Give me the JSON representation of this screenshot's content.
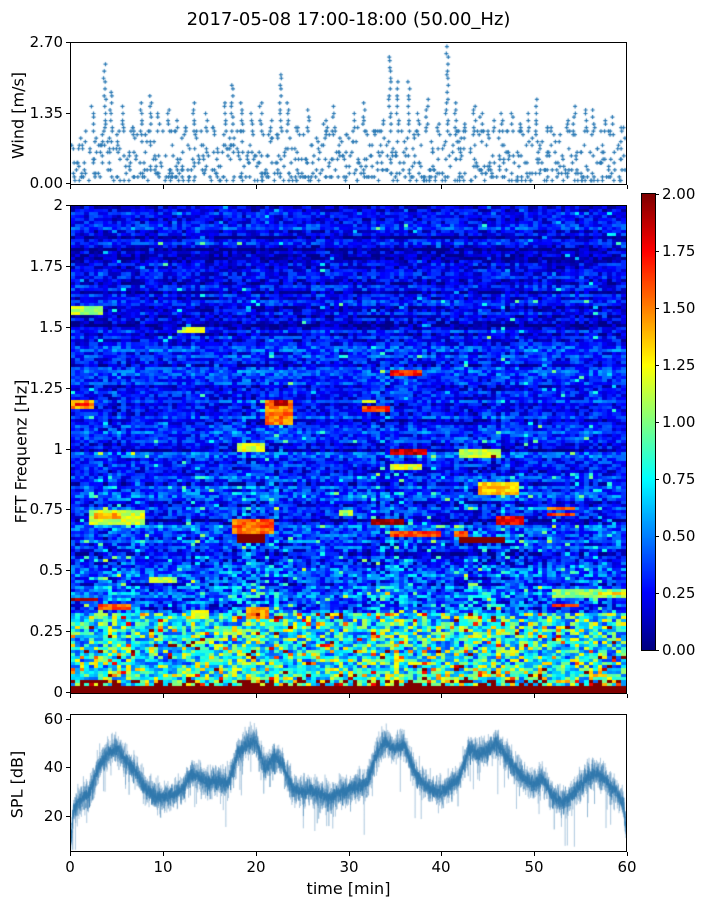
{
  "title": "2017-05-08 17:00-18:00 (50.00_Hz)",
  "colors": {
    "marker_blue": "#2878b4",
    "spl_blue": "#3078ad",
    "axis": "#000000",
    "background": "#ffffff"
  },
  "chart_data": [
    {
      "type": "scatter",
      "name": "wind-speed",
      "ylabel": "Wind [m/s]",
      "yticks": [
        "0.00",
        "1.35",
        "2.70"
      ],
      "ytick_values": [
        0,
        1.35,
        2.7
      ],
      "ylim": [
        0,
        2.7
      ],
      "xlim": [
        0,
        60
      ],
      "marker": "plus",
      "quantization_ms": 0.0675,
      "points_per_minute": 13,
      "minute_max_envelope": [
        0.95,
        1.0,
        1.45,
        2.25,
        1.75,
        1.45,
        1.1,
        1.5,
        1.65,
        1.35,
        1.4,
        1.2,
        1.1,
        1.5,
        1.3,
        1.1,
        1.55,
        1.9,
        1.5,
        1.3,
        1.55,
        1.2,
        2.1,
        1.5,
        1.1,
        1.4,
        1.0,
        1.2,
        1.45,
        1.0,
        1.3,
        1.5,
        1.0,
        1.2,
        2.45,
        1.9,
        1.9,
        1.3,
        1.6,
        1.1,
        2.6,
        1.5,
        1.1,
        1.5,
        1.35,
        1.2,
        1.3,
        1.35,
        1.1,
        1.3,
        1.55,
        1.1,
        1.0,
        1.2,
        1.45,
        1.4,
        1.35,
        1.2,
        1.25,
        1.1
      ]
    },
    {
      "type": "heatmap",
      "name": "fft-spectrogram",
      "ylabel": "FFT Frequenz [Hz]",
      "yticks": [
        "0",
        "0.25",
        "0.5",
        "0.75",
        "1",
        "1.25",
        "1.5",
        "1.75",
        "2"
      ],
      "ytick_values": [
        0,
        0.25,
        0.5,
        0.75,
        1,
        1.25,
        1.5,
        1.75,
        2
      ],
      "ylim": [
        0,
        2
      ],
      "xlim": [
        0,
        60
      ],
      "colormap": "jet",
      "clim": [
        0,
        2
      ],
      "colorbar_ticks": [
        "0.00",
        "0.25",
        "0.50",
        "0.75",
        "1.00",
        "1.25",
        "1.50",
        "1.75",
        "2.00"
      ],
      "colorbar_tick_values": [
        0,
        0.25,
        0.5,
        0.75,
        1,
        1.25,
        1.5,
        1.75,
        2
      ],
      "bottom_band_hz": 0.03,
      "low_band_hz": 0.33,
      "base_profile": [
        [
          0,
          2.5
        ],
        [
          0.025,
          2.5
        ],
        [
          0.04,
          1.15
        ],
        [
          0.07,
          0.95
        ],
        [
          0.12,
          0.8
        ],
        [
          0.2,
          0.68
        ],
        [
          0.3,
          0.52
        ],
        [
          0.4,
          0.42
        ],
        [
          0.55,
          0.37
        ],
        [
          0.8,
          0.33
        ],
        [
          1.1,
          0.31
        ],
        [
          1.5,
          0.29
        ],
        [
          2,
          0.27
        ]
      ],
      "noise_profile": [
        [
          0.03,
          0.55
        ],
        [
          0.1,
          0.5
        ],
        [
          0.25,
          0.45
        ],
        [
          0.4,
          0.3
        ],
        [
          0.7,
          0.24
        ],
        [
          1.2,
          0.2
        ],
        [
          2,
          0.18
        ]
      ],
      "hotspots": [
        [
          0,
          3.5,
          1.552,
          1.585,
          1.1
        ],
        [
          0,
          2.7,
          1.163,
          1.2,
          1.45
        ],
        [
          0.3,
          2.2,
          1.175,
          1.19,
          1.75
        ],
        [
          2,
          8,
          0.69,
          0.755,
          1.15
        ],
        [
          2.5,
          5.5,
          0.715,
          0.732,
          1.4
        ],
        [
          0,
          3.2,
          0.372,
          0.39,
          1.9
        ],
        [
          3.2,
          6.5,
          0.34,
          0.357,
          1.55
        ],
        [
          8.5,
          11.5,
          0.455,
          0.478,
          1.1
        ],
        [
          12.2,
          14.5,
          1.48,
          1.5,
          1.15
        ],
        [
          13,
          15,
          0.3,
          0.335,
          1.25
        ],
        [
          17.6,
          22,
          0.655,
          0.712,
          1.55
        ],
        [
          18,
          21.2,
          0.618,
          0.648,
          2.2
        ],
        [
          18,
          21,
          0.985,
          1.03,
          1.2
        ],
        [
          21,
          24,
          1.105,
          1.2,
          1.5
        ],
        [
          22,
          23.7,
          1.178,
          1.198,
          1.95
        ],
        [
          19,
          21.5,
          0.3,
          0.345,
          1.5
        ],
        [
          28.8,
          30.3,
          0.72,
          0.745,
          1.05
        ],
        [
          31.3,
          34.5,
          1.148,
          1.172,
          1.65
        ],
        [
          31.6,
          33.2,
          1.188,
          1.205,
          1.3
        ],
        [
          34.5,
          38,
          1.298,
          1.328,
          1.7
        ],
        [
          34.6,
          38.5,
          0.978,
          1.0,
          1.85
        ],
        [
          34.5,
          38,
          0.915,
          0.94,
          1.15
        ],
        [
          32.6,
          36,
          0.683,
          0.712,
          1.95
        ],
        [
          34.3,
          40,
          0.638,
          0.66,
          1.65
        ],
        [
          41.5,
          42.8,
          0.638,
          0.668,
          1.6
        ],
        [
          42,
          47.2,
          0.616,
          0.642,
          2.2
        ],
        [
          42,
          46.3,
          0.962,
          1.0,
          1.15
        ],
        [
          45.4,
          46.1,
          0.966,
          0.98,
          2.1
        ],
        [
          44,
          48.5,
          0.818,
          0.857,
          1.35
        ],
        [
          46,
          49.2,
          0.688,
          0.72,
          1.75
        ],
        [
          51.5,
          54.5,
          0.748,
          0.764,
          1.5
        ],
        [
          51.5,
          54.5,
          0.723,
          0.74,
          1.65
        ],
        [
          52.2,
          54.8,
          0.348,
          0.366,
          1.7
        ],
        [
          52,
          60,
          0.385,
          0.42,
          1.0
        ],
        [
          56.9,
          60,
          0.398,
          0.418,
          1.35
        ]
      ]
    },
    {
      "type": "line",
      "name": "spl",
      "ylabel": "SPL [dB]",
      "yticks": [
        "20",
        "40",
        "60"
      ],
      "ytick_values": [
        20,
        40,
        60
      ],
      "ylim": [
        6,
        62
      ],
      "xlabel": "time [min]",
      "xticks": [
        "0",
        "10",
        "20",
        "30",
        "40",
        "50",
        "60"
      ],
      "xtick_values": [
        0,
        10,
        20,
        30,
        40,
        50,
        60
      ],
      "xlim": [
        0,
        60
      ],
      "minute_means_db": [
        22,
        27,
        30,
        41,
        46,
        48,
        43,
        39,
        32,
        29,
        28,
        29,
        31,
        38,
        36,
        34,
        35,
        34,
        46,
        50,
        51,
        40,
        45,
        41,
        31,
        30,
        31,
        29,
        28,
        30,
        31,
        33,
        34,
        46,
        51,
        48,
        50,
        40,
        34,
        31,
        30,
        33,
        36,
        48,
        46,
        47,
        51,
        45,
        40,
        36,
        33,
        36,
        29,
        26,
        28,
        33,
        37,
        38,
        34,
        30,
        24
      ],
      "jitter_db": 2.3,
      "edge_dip_db": 12
    }
  ]
}
